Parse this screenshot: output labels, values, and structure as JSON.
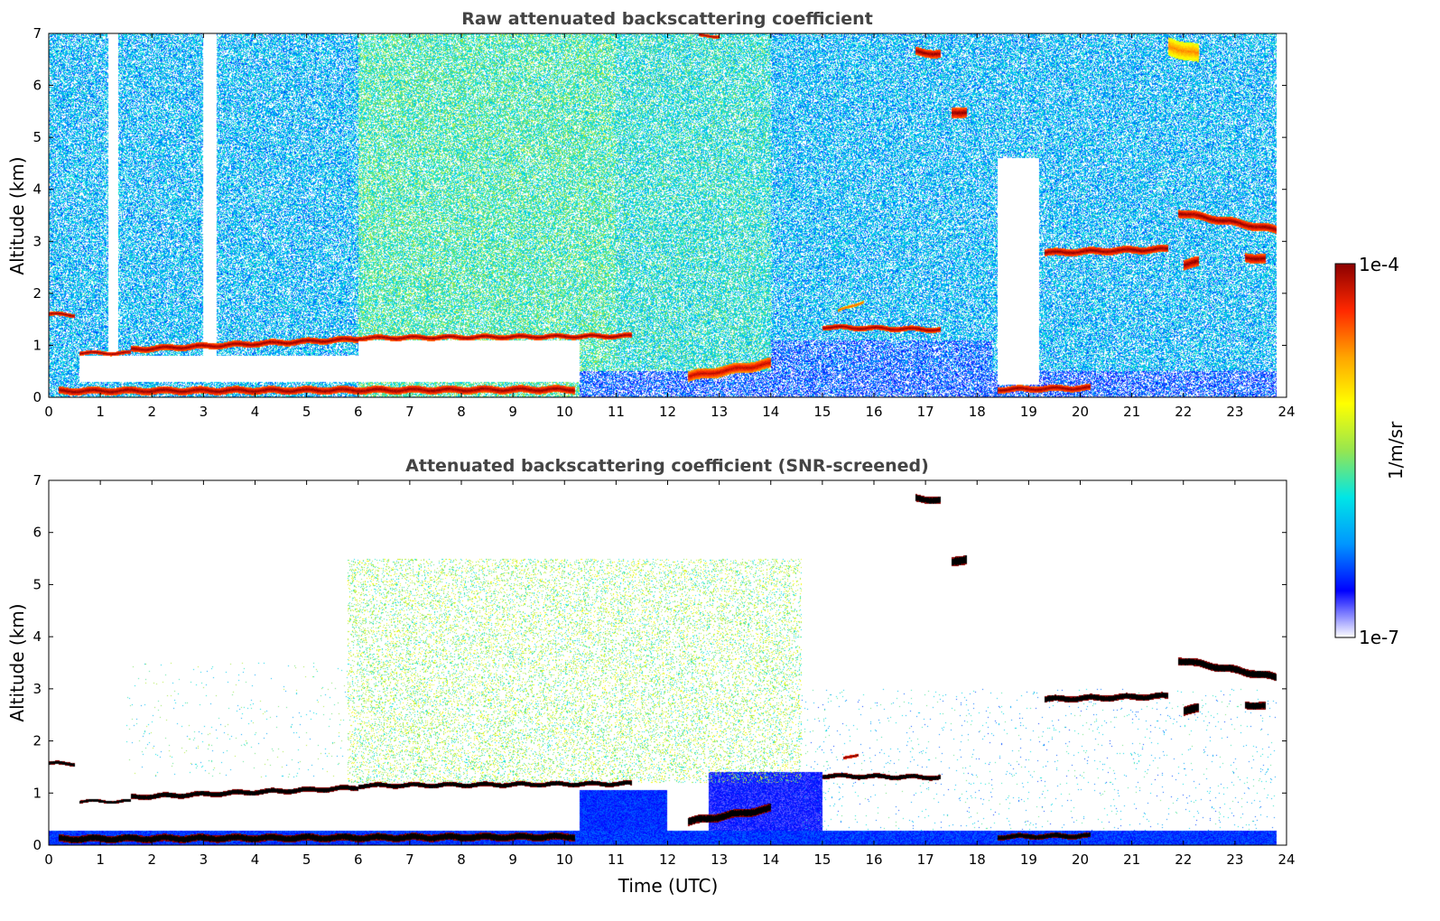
{
  "chart_data": [
    {
      "type": "heatmap",
      "title": "Raw attenuated backscattering coefficient",
      "xlabel": "",
      "ylabel": "Altitude (km)",
      "xlim": [
        0,
        24
      ],
      "ylim": [
        0,
        7
      ],
      "x_ticks": [
        "0",
        "1",
        "2",
        "3",
        "4",
        "5",
        "6",
        "7",
        "8",
        "9",
        "10",
        "11",
        "12",
        "13",
        "14",
        "15",
        "16",
        "17",
        "18",
        "19",
        "20",
        "21",
        "22",
        "23",
        "24"
      ],
      "y_ticks": [
        "0",
        "1",
        "2",
        "3",
        "4",
        "5",
        "6",
        "7"
      ],
      "noise_level": 0.36,
      "background_regions": [
        {
          "t0": 0,
          "t1": 6,
          "alt0": 0,
          "alt1": 7,
          "level": 0.3
        },
        {
          "t0": 6,
          "t1": 11,
          "alt0": 0,
          "alt1": 7,
          "level": 0.42
        },
        {
          "t0": 11,
          "t1": 14,
          "alt0": 0,
          "alt1": 7,
          "level": 0.38
        },
        {
          "t0": 14,
          "t1": 24,
          "alt0": 0,
          "alt1": 7,
          "level": 0.3
        },
        {
          "t0": 10.3,
          "t1": 23.8,
          "alt0": 0,
          "alt1": 0.5,
          "level": 0.18
        },
        {
          "t0": 14,
          "t1": 18.3,
          "alt0": 0.5,
          "alt1": 1.1,
          "level": 0.2
        }
      ],
      "clear_regions": [
        {
          "t0": 1.15,
          "t1": 1.35,
          "alt0": 0.8,
          "alt1": 7
        },
        {
          "t0": 3.0,
          "t1": 3.25,
          "alt0": 0.8,
          "alt1": 7
        },
        {
          "t0": 0.6,
          "t1": 6.0,
          "alt0": 0.3,
          "alt1": 0.8
        },
        {
          "t0": 6.0,
          "t1": 10.3,
          "alt0": 0.3,
          "alt1": 1.1
        },
        {
          "t0": 18.4,
          "t1": 19.2,
          "alt0": 0.25,
          "alt1": 4.6
        },
        {
          "t0": 23.8,
          "t1": 24,
          "alt0": 0,
          "alt1": 7
        }
      ],
      "layers": [
        {
          "t0": 0,
          "t1": 0.5,
          "alt_start": 1.6,
          "alt_end": 1.58,
          "thickness": 0.08,
          "intensity": 1
        },
        {
          "t0": 0.6,
          "t1": 1.6,
          "alt_start": 0.85,
          "alt_end": 0.85,
          "thickness": 0.08,
          "intensity": 1
        },
        {
          "t0": 1.6,
          "t1": 6.0,
          "alt_start": 0.92,
          "alt_end": 1.12,
          "thickness": 0.12,
          "intensity": 1
        },
        {
          "t0": 6.0,
          "t1": 11.3,
          "alt_start": 1.14,
          "alt_end": 1.18,
          "thickness": 0.1,
          "intensity": 1
        },
        {
          "t0": 0.2,
          "t1": 10.2,
          "alt_start": 0.12,
          "alt_end": 0.15,
          "thickness": 0.14,
          "intensity": 1
        },
        {
          "t0": 12.4,
          "t1": 14.0,
          "alt_start": 0.4,
          "alt_end": 0.65,
          "thickness": 0.2,
          "intensity": 0.95
        },
        {
          "t0": 15.0,
          "t1": 17.3,
          "alt_start": 1.35,
          "alt_end": 1.3,
          "thickness": 0.1,
          "intensity": 1
        },
        {
          "t0": 15.3,
          "t1": 15.8,
          "alt_start": 1.65,
          "alt_end": 1.85,
          "thickness": 0.06,
          "intensity": 0.85
        },
        {
          "t0": 18.4,
          "t1": 20.2,
          "alt_start": 0.15,
          "alt_end": 0.18,
          "thickness": 0.12,
          "intensity": 1
        },
        {
          "t0": 19.3,
          "t1": 21.7,
          "alt_start": 2.78,
          "alt_end": 2.85,
          "thickness": 0.14,
          "intensity": 1
        },
        {
          "t0": 21.9,
          "t1": 23.8,
          "alt_start": 3.55,
          "alt_end": 3.22,
          "thickness": 0.16,
          "intensity": 1
        },
        {
          "t0": 22.0,
          "t1": 22.3,
          "alt_start": 2.55,
          "alt_end": 2.6,
          "thickness": 0.2,
          "intensity": 1
        },
        {
          "t0": 23.2,
          "t1": 23.6,
          "alt_start": 2.7,
          "alt_end": 2.65,
          "thickness": 0.18,
          "intensity": 1
        },
        {
          "t0": 16.8,
          "t1": 17.3,
          "alt_start": 6.65,
          "alt_end": 6.6,
          "thickness": 0.16,
          "intensity": 1
        },
        {
          "t0": 17.5,
          "t1": 17.8,
          "alt_start": 5.45,
          "alt_end": 5.5,
          "thickness": 0.2,
          "intensity": 1
        },
        {
          "t0": 21.7,
          "t1": 22.3,
          "alt_start": 6.75,
          "alt_end": 6.6,
          "thickness": 0.35,
          "intensity": 0.78
        },
        {
          "t0": 12.6,
          "t1": 13.0,
          "alt_start": 6.95,
          "alt_end": 6.95,
          "thickness": 0.06,
          "intensity": 1
        }
      ]
    },
    {
      "type": "heatmap",
      "title": "Attenuated backscattering coefficient (SNR-screened)",
      "xlabel": "Time (UTC)",
      "ylabel": "Altitude (km)",
      "xlim": [
        0,
        24
      ],
      "ylim": [
        0,
        7
      ],
      "x_ticks": [
        "0",
        "1",
        "2",
        "3",
        "4",
        "5",
        "6",
        "7",
        "8",
        "9",
        "10",
        "11",
        "12",
        "13",
        "14",
        "15",
        "16",
        "17",
        "18",
        "19",
        "20",
        "21",
        "22",
        "23",
        "24"
      ],
      "y_ticks": [
        "0",
        "1",
        "2",
        "3",
        "4",
        "5",
        "6",
        "7"
      ],
      "noise_level": 0,
      "background_regions": [
        {
          "t0": 0,
          "t1": 23.8,
          "alt0": 0,
          "alt1": 0.28,
          "level": 0.17
        },
        {
          "t0": 10.3,
          "t1": 12.0,
          "alt0": 0.28,
          "alt1": 1.05,
          "level": 0.16
        },
        {
          "t0": 12.8,
          "t1": 15.0,
          "alt0": 0.28,
          "alt1": 1.4,
          "level": 0.12
        }
      ],
      "scatter_regions": [
        {
          "t0": 5.8,
          "t1": 14.6,
          "alt0": 1.2,
          "alt1": 5.5,
          "level": 0.5,
          "density": 0.17
        },
        {
          "t0": 1.5,
          "t1": 5.8,
          "alt0": 1.3,
          "alt1": 3.5,
          "level": 0.4,
          "density": 0.01
        },
        {
          "t0": 14.6,
          "t1": 23.8,
          "alt0": 0.28,
          "alt1": 3.0,
          "level": 0.32,
          "density": 0.015
        }
      ],
      "clear_regions": [],
      "layers": [
        {
          "t0": 0,
          "t1": 0.5,
          "alt_start": 1.57,
          "alt_end": 1.56,
          "thickness": 0.07,
          "intensity": 1.2
        },
        {
          "t0": 0.6,
          "t1": 1.6,
          "alt_start": 0.84,
          "alt_end": 0.84,
          "thickness": 0.06,
          "intensity": 1.2
        },
        {
          "t0": 1.6,
          "t1": 6.0,
          "alt_start": 0.92,
          "alt_end": 1.1,
          "thickness": 0.1,
          "intensity": 1.2
        },
        {
          "t0": 6.0,
          "t1": 11.3,
          "alt_start": 1.14,
          "alt_end": 1.18,
          "thickness": 0.09,
          "intensity": 1.2
        },
        {
          "t0": 0.2,
          "t1": 10.2,
          "alt_start": 0.12,
          "alt_end": 0.16,
          "thickness": 0.14,
          "intensity": 1.2
        },
        {
          "t0": 12.4,
          "t1": 14.0,
          "alt_start": 0.45,
          "alt_end": 0.7,
          "thickness": 0.16,
          "intensity": 1.2
        },
        {
          "t0": 15.0,
          "t1": 17.3,
          "alt_start": 1.33,
          "alt_end": 1.3,
          "thickness": 0.09,
          "intensity": 1.2
        },
        {
          "t0": 15.4,
          "t1": 15.7,
          "alt_start": 1.65,
          "alt_end": 1.75,
          "thickness": 0.06,
          "intensity": 1.05
        },
        {
          "t0": 18.4,
          "t1": 20.2,
          "alt_start": 0.16,
          "alt_end": 0.18,
          "thickness": 0.1,
          "intensity": 1.2
        },
        {
          "t0": 19.3,
          "t1": 21.7,
          "alt_start": 2.8,
          "alt_end": 2.86,
          "thickness": 0.12,
          "intensity": 1.2
        },
        {
          "t0": 21.9,
          "t1": 23.8,
          "alt_start": 3.55,
          "alt_end": 3.22,
          "thickness": 0.15,
          "intensity": 1.2
        },
        {
          "t0": 22.0,
          "t1": 22.3,
          "alt_start": 2.58,
          "alt_end": 2.62,
          "thickness": 0.18,
          "intensity": 1.2
        },
        {
          "t0": 23.2,
          "t1": 23.6,
          "alt_start": 2.7,
          "alt_end": 2.66,
          "thickness": 0.15,
          "intensity": 1.2
        },
        {
          "t0": 16.8,
          "t1": 17.3,
          "alt_start": 6.65,
          "alt_end": 6.62,
          "thickness": 0.14,
          "intensity": 1.2
        },
        {
          "t0": 17.5,
          "t1": 17.8,
          "alt_start": 5.42,
          "alt_end": 5.5,
          "thickness": 0.18,
          "intensity": 1.2
        }
      ]
    }
  ],
  "colorbar": {
    "label": "1/m/sr",
    "max_label": "1e-4",
    "min_label": "1e-7",
    "scale": "log",
    "range": [
      1e-07,
      0.0001
    ],
    "palette": [
      "#ffffff",
      "#0000ff",
      "#0096ff",
      "#00e6e6",
      "#96e650",
      "#ffff00",
      "#ffa500",
      "#ff2800",
      "#8b0000"
    ]
  }
}
